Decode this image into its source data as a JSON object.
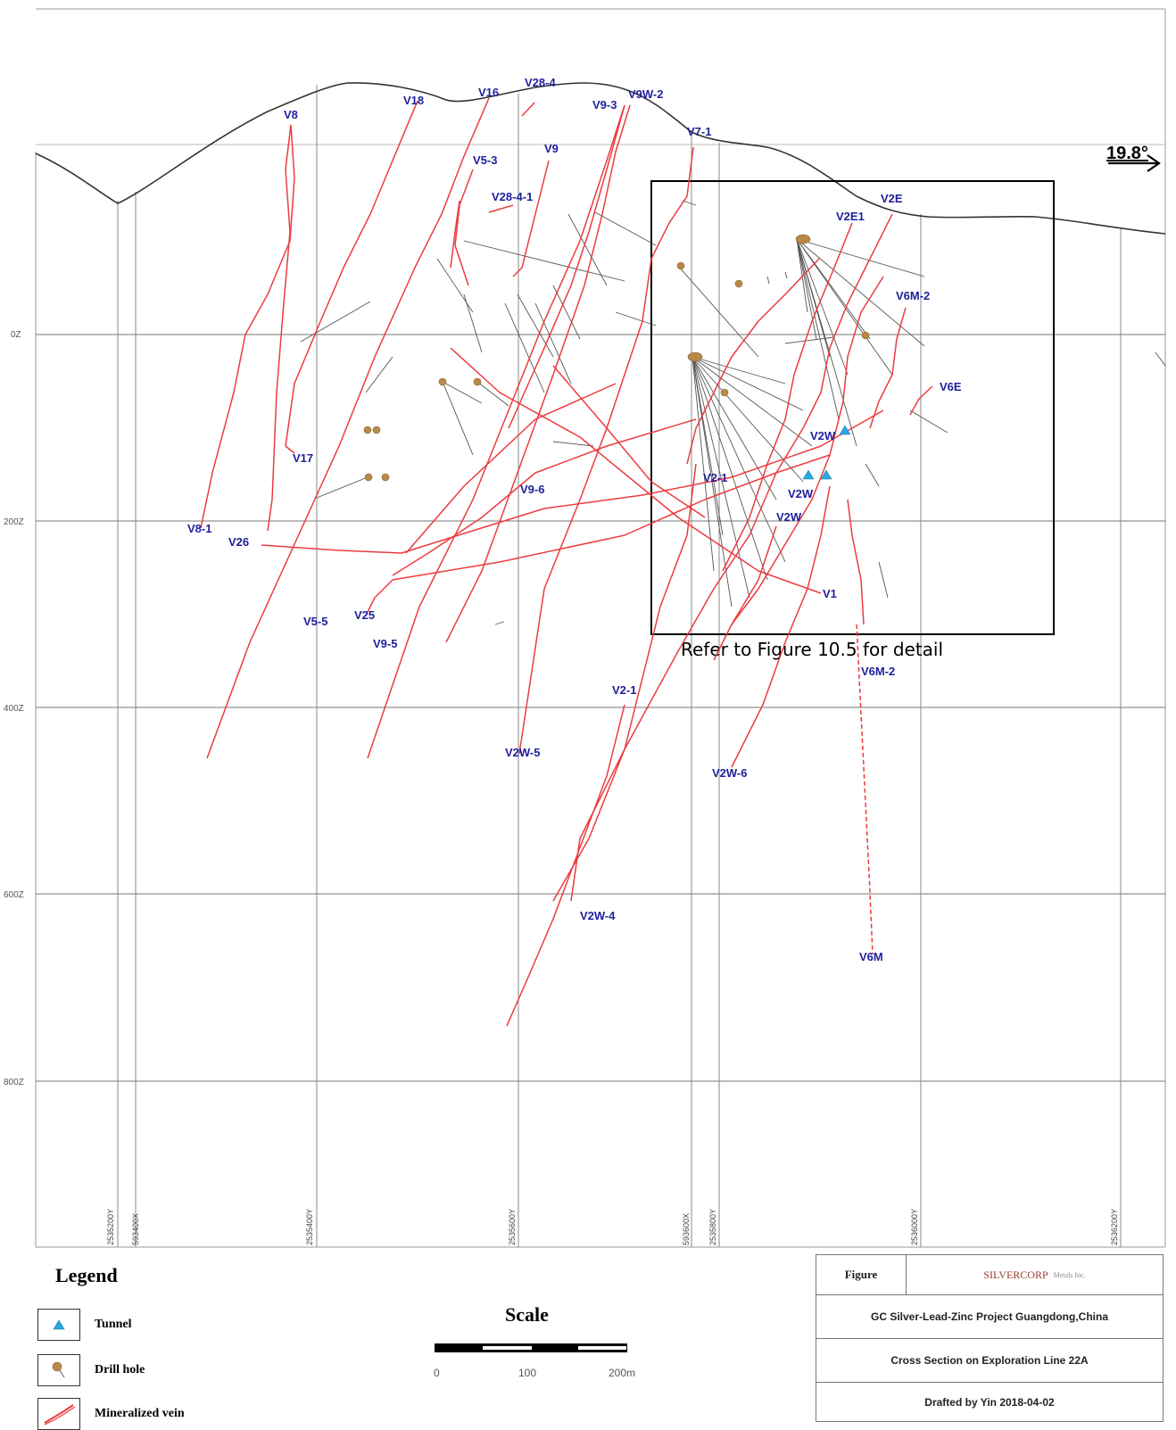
{
  "section": {
    "north_arrow": "19.8°",
    "callout": "Refer to Figure 10.5 for detail",
    "elevation_labels": [
      "0Z",
      "200Z",
      "400Z",
      "600Z",
      "800Z"
    ],
    "grid_labels": [
      "2535200Y",
      "593400X",
      "2535400Y",
      "2535600Y",
      "593600X",
      "2535800Y",
      "2536000Y",
      "2536200Y"
    ],
    "vein_labels": [
      "V8",
      "V18",
      "V16",
      "V28-4",
      "V9-3",
      "V9W-2",
      "V7-1",
      "V5-3",
      "V9",
      "V28-4-1",
      "V2E",
      "V2E1",
      "V6M-2",
      "V6E",
      "V17",
      "V8-1",
      "V26",
      "V9-6",
      "V2-1",
      "V2W",
      "V2W",
      "V2W",
      "V1",
      "V5-5",
      "V25",
      "V9-5",
      "V6M-2",
      "V2-1",
      "V2W-5",
      "V2W-6",
      "V2W-4",
      "V6M"
    ]
  },
  "legend": {
    "title": "Legend",
    "items": [
      {
        "label": "Tunnel",
        "icon": "tunnel-icon",
        "color": "#2aa8e0"
      },
      {
        "label": "Drill hole",
        "icon": "drill-hole-icon",
        "color": "#b88a4a"
      },
      {
        "label": "Mineralized vein",
        "icon": "vein-icon",
        "color": "#e8383a"
      }
    ]
  },
  "scale": {
    "title": "Scale",
    "labels": [
      "0",
      "100",
      "200m"
    ]
  },
  "title_block": {
    "figure_label": "Figure",
    "logo_text": "SILVERCORP",
    "logo_sub": "Metals Inc.",
    "project": "GC Silver-Lead-Zinc Project Guangdong,China",
    "section_title": "Cross Section on Exploration Line 22A",
    "drafted": "Drafted by Yin 2018-04-02"
  }
}
